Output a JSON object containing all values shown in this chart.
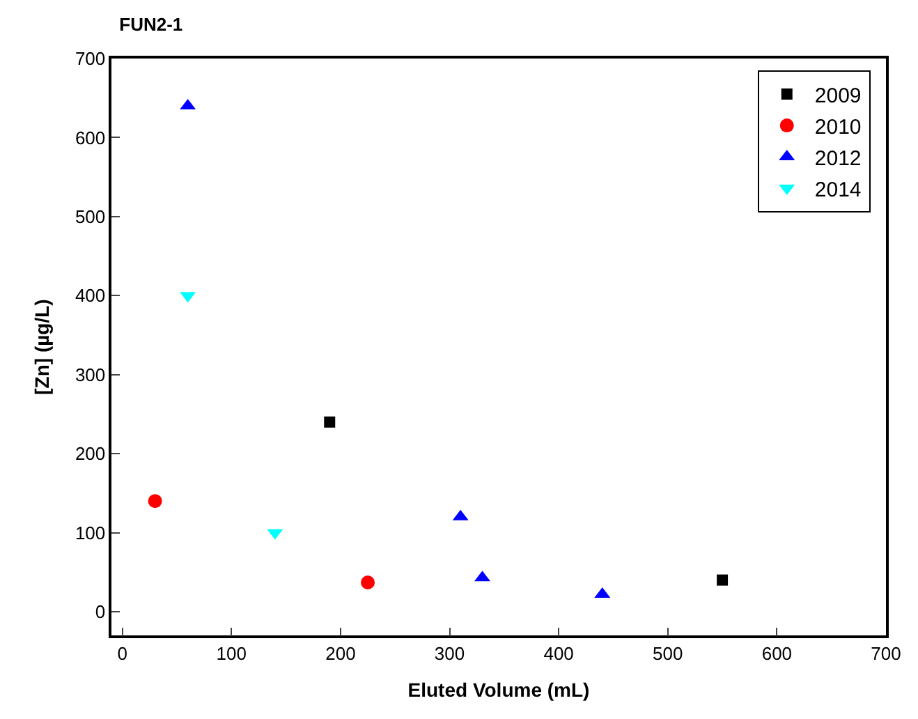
{
  "chart_data": {
    "type": "scatter",
    "title": "FUN2-1",
    "xlabel": "Eluted Volume (mL)",
    "ylabel": "[Zn] (µg/L)",
    "xlim": [
      -10,
      700
    ],
    "ylim": [
      -30,
      700
    ],
    "xticks": [
      0,
      100,
      200,
      300,
      400,
      500,
      600,
      700
    ],
    "yticks": [
      0,
      100,
      200,
      300,
      400,
      500,
      600,
      700
    ],
    "legend": "top right",
    "series": [
      {
        "name": "2009",
        "color": "#000000",
        "marker": "square",
        "x": [
          190,
          550
        ],
        "values": [
          240,
          40
        ]
      },
      {
        "name": "2010",
        "color": "#ff0000",
        "marker": "circle",
        "x": [
          30,
          225
        ],
        "values": [
          140,
          37
        ]
      },
      {
        "name": "2012",
        "color": "#0000ff",
        "marker": "triangle",
        "x": [
          60,
          310,
          330,
          440
        ],
        "values": [
          640,
          120,
          43,
          22
        ]
      },
      {
        "name": "2014",
        "color": "#00ffff",
        "marker": "triangle-down",
        "x": [
          60,
          140
        ],
        "values": [
          400,
          100
        ]
      }
    ]
  }
}
